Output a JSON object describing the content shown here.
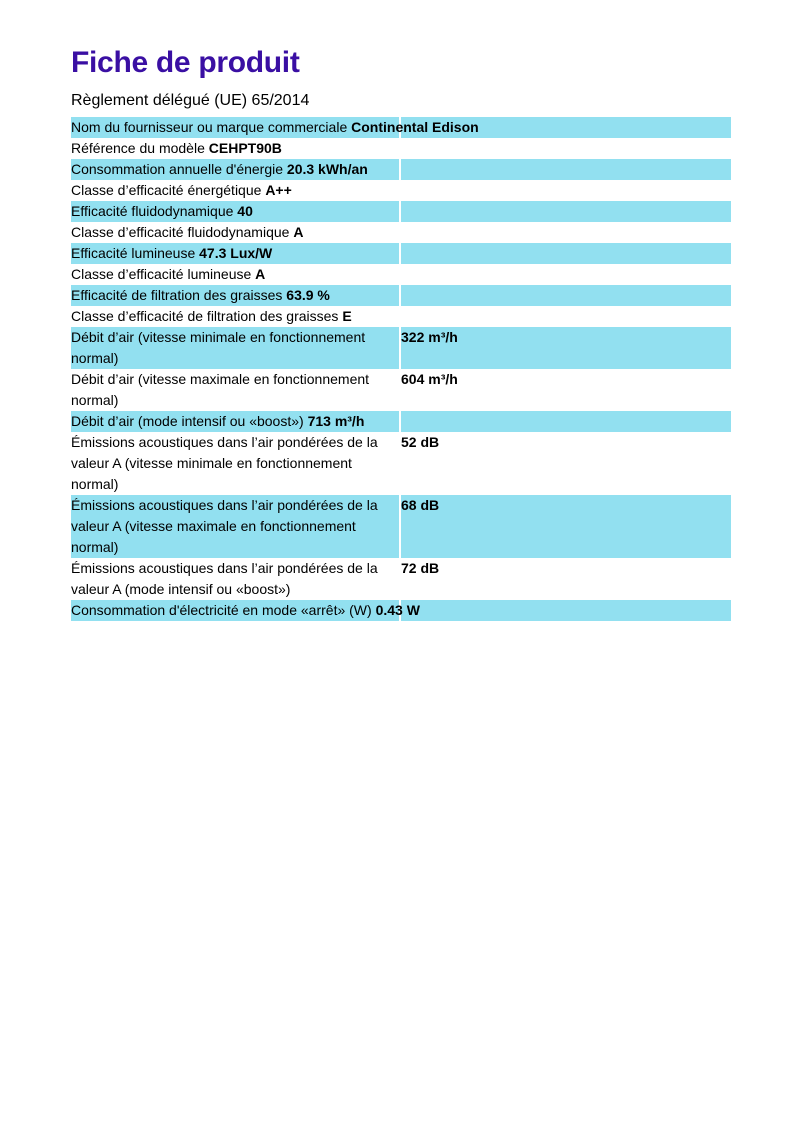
{
  "title": "Fiche de produit",
  "subtitle": "Règlement délégué (UE) 65/2014",
  "colors": {
    "title": "#3a0fa3",
    "row_highlight": "#92e0f0"
  },
  "rows": [
    {
      "label": "Nom du fournisseur ou marque commerciale",
      "value": "Continental Edison",
      "split": false
    },
    {
      "label": "Référence du modèle",
      "value": "CEHPT90B",
      "split": false
    },
    {
      "label": "Consommation annuelle d'énergie",
      "value": "20.3 kWh/an",
      "split": false
    },
    {
      "label": "Classe d’efficacité énergétique",
      "value": "A++",
      "split": false
    },
    {
      "label": "Efficacité fluidodynamique",
      "value": "40",
      "split": false
    },
    {
      "label": "Classe d’efficacité fluidodynamique",
      "value": "A",
      "split": false
    },
    {
      "label": "Efficacité lumineuse",
      "value": "47.3 Lux/W",
      "split": false
    },
    {
      "label": "Classe d’efficacité lumineuse",
      "value": "A",
      "split": false
    },
    {
      "label": "Efficacité de filtration des graisses",
      "value": "63.9 %",
      "split": false
    },
    {
      "label": "Classe d’efficacité de filtration des graisses",
      "value": "E",
      "split": false
    },
    {
      "label": "Débit d’air (vitesse minimale en fonctionnement normal)",
      "value": "322 m³/h",
      "split": true
    },
    {
      "label": "Débit d’air (vitesse maximale en fonctionnement normal)",
      "value": "604 m³/h",
      "split": true
    },
    {
      "label": "Débit d’air (mode intensif ou «boost»)",
      "value": "713 m³/h",
      "split": false
    },
    {
      "label": "Émissions acoustiques dans l’air pondérées de la valeur A (vitesse minimale en fonctionnement normal)",
      "value": "52 dB",
      "split": true
    },
    {
      "label": "Émissions acoustiques dans l’air pondérées de la valeur A (vitesse maximale en fonctionnement normal)",
      "value": "68 dB",
      "split": true
    },
    {
      "label": "Émissions acoustiques dans l’air pondérées de la valeur A (mode intensif ou «boost»)",
      "value": "72 dB",
      "split": true
    },
    {
      "label": "Consommation d'électricité en mode «arrêt» (W)",
      "value": "0.43 W",
      "split": false
    }
  ]
}
